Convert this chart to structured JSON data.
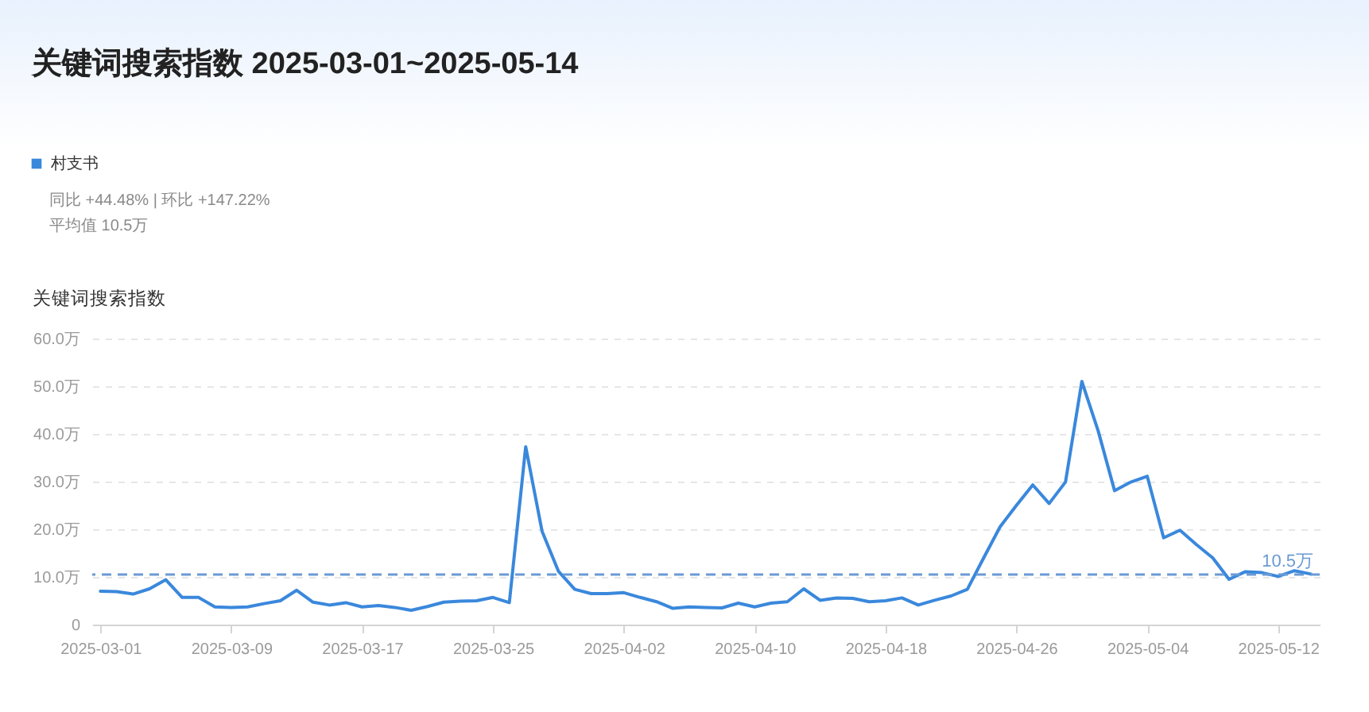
{
  "chart_data": {
    "type": "line",
    "title": "关键词搜索指数 2025-03-01~2025-05-14",
    "ylabel": "关键词搜索指数",
    "annotations": [
      "同比 +44.48% | 环比 +147.22%",
      "平均值 10.5万"
    ],
    "x": [
      "2025-03-01",
      "2025-03-02",
      "2025-03-03",
      "2025-03-04",
      "2025-03-05",
      "2025-03-06",
      "2025-03-07",
      "2025-03-08",
      "2025-03-09",
      "2025-03-10",
      "2025-03-11",
      "2025-03-12",
      "2025-03-13",
      "2025-03-14",
      "2025-03-15",
      "2025-03-16",
      "2025-03-17",
      "2025-03-18",
      "2025-03-19",
      "2025-03-20",
      "2025-03-21",
      "2025-03-22",
      "2025-03-23",
      "2025-03-24",
      "2025-03-25",
      "2025-03-26",
      "2025-03-27",
      "2025-03-28",
      "2025-03-29",
      "2025-03-30",
      "2025-03-31",
      "2025-04-01",
      "2025-04-02",
      "2025-04-03",
      "2025-04-04",
      "2025-04-05",
      "2025-04-06",
      "2025-04-07",
      "2025-04-08",
      "2025-04-09",
      "2025-04-10",
      "2025-04-11",
      "2025-04-12",
      "2025-04-13",
      "2025-04-14",
      "2025-04-15",
      "2025-04-16",
      "2025-04-17",
      "2025-04-18",
      "2025-04-19",
      "2025-04-20",
      "2025-04-21",
      "2025-04-22",
      "2025-04-23",
      "2025-04-24",
      "2025-04-25",
      "2025-04-26",
      "2025-04-27",
      "2025-04-28",
      "2025-04-29",
      "2025-04-30",
      "2025-05-01",
      "2025-05-02",
      "2025-05-03",
      "2025-05-04",
      "2025-05-05",
      "2025-05-06",
      "2025-05-07",
      "2025-05-08",
      "2025-05-09",
      "2025-05-10",
      "2025-05-11",
      "2025-05-12",
      "2025-05-13",
      "2025-05-14"
    ],
    "series": [
      {
        "name": "村支书",
        "color": "#3a88dc",
        "values": [
          7.0,
          6.9,
          6.4,
          7.5,
          9.4,
          5.7,
          5.7,
          3.7,
          3.6,
          3.7,
          4.4,
          5.0,
          7.2,
          4.7,
          4.1,
          4.6,
          3.7,
          4.0,
          3.6,
          3.0,
          3.8,
          4.7,
          4.9,
          5.0,
          5.7,
          4.6,
          37.3,
          19.6,
          11.2,
          7.4,
          6.5,
          6.5,
          6.7,
          5.7,
          4.8,
          3.4,
          3.7,
          3.6,
          3.5,
          4.5,
          3.7,
          4.5,
          4.8,
          7.5,
          5.1,
          5.6,
          5.5,
          4.8,
          5.0,
          5.6,
          4.1,
          5.1,
          6.0,
          7.4,
          14.0,
          20.5,
          25.0,
          29.3,
          25.4,
          29.9,
          51.0,
          40.6,
          28.1,
          29.9,
          31.1,
          18.2,
          19.8,
          16.8,
          14.0,
          9.5,
          11.1,
          10.9,
          10.1,
          11.3,
          10.6
        ]
      }
    ],
    "xlim": [
      "2025-02-28T12:00",
      "2025-05-14T13:00"
    ],
    "xticks": [
      "2025-03-01",
      "2025-03-09",
      "2025-03-17",
      "2025-03-25",
      "2025-04-02",
      "2025-04-10",
      "2025-04-18",
      "2025-04-26",
      "2025-05-04",
      "2025-05-12"
    ],
    "ylim": [
      0,
      60
    ],
    "yticks": [
      0,
      {
        "value": 10,
        "label": "10.0万"
      },
      {
        "value": 20,
        "label": "20.0万"
      },
      {
        "value": 30,
        "label": "30.0万"
      },
      {
        "value": 40,
        "label": "40.0万"
      },
      {
        "value": 50,
        "label": "50.0万"
      },
      {
        "value": 60,
        "label": "60.0万"
      }
    ],
    "ref_lines": [
      {
        "axis": "y",
        "value": 10.5,
        "label": "10.5万",
        "color": "#6b9ad4",
        "line_style": "dashed"
      }
    ],
    "grid": "y",
    "legend": "top left"
  }
}
